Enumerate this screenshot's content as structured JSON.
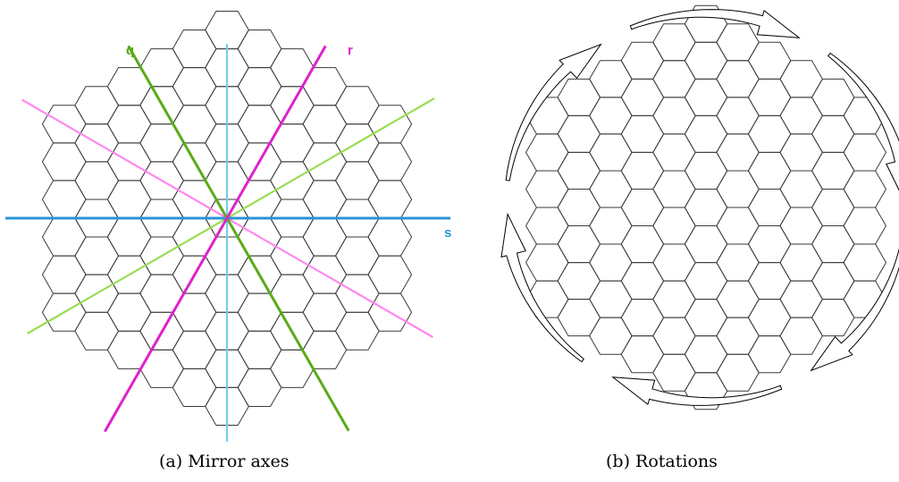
{
  "panels": [
    {
      "caption": "(a) Mirror axes",
      "axes": [
        {
          "label": "q",
          "color": "#5aaa1a"
        },
        {
          "label": "r",
          "color": "#dd22cc"
        },
        {
          "label": "s",
          "color": "#2a93d5"
        },
        {
          "label": "",
          "color": "#99dd55"
        },
        {
          "label": "",
          "color": "#ff88ee"
        },
        {
          "label": "",
          "color": "#77ccee"
        }
      ]
    },
    {
      "caption": "(b) Rotations",
      "arrows": 6
    }
  ],
  "grid": {
    "radius": 5,
    "cells": 91
  }
}
